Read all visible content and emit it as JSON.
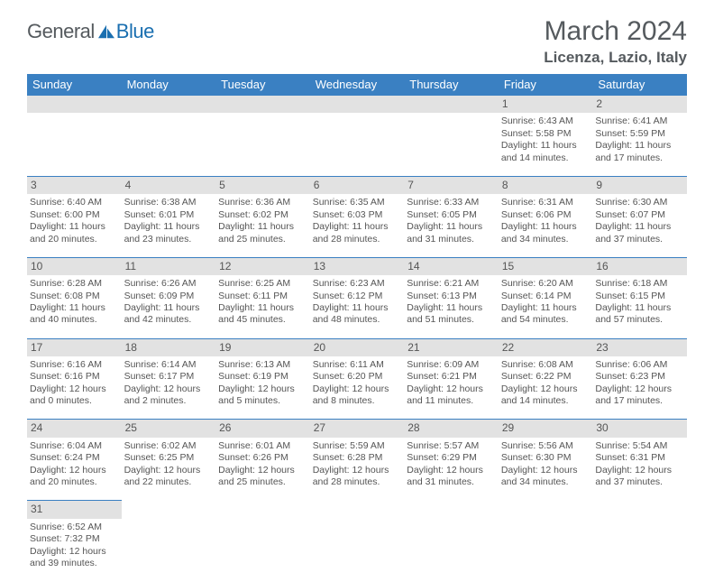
{
  "brand": {
    "word1": "General",
    "word2": "Blue"
  },
  "title": "March 2024",
  "location": "Licenza, Lazio, Italy",
  "colors": {
    "header_bg": "#3a80c2",
    "header_text": "#ffffff",
    "daynum_bg": "#e2e2e2",
    "row_divider": "#3a80c2",
    "body_text": "#555555",
    "brand_gray": "#555a5e",
    "brand_blue": "#1a6fb0",
    "page_bg": "#ffffff"
  },
  "typography": {
    "title_fontsize": 30,
    "location_fontsize": 17,
    "dayheader_fontsize": 13,
    "daynum_fontsize": 12,
    "cell_fontsize": 10.5,
    "font_family": "Arial"
  },
  "day_headers": [
    "Sunday",
    "Monday",
    "Tuesday",
    "Wednesday",
    "Thursday",
    "Friday",
    "Saturday"
  ],
  "weeks": [
    [
      null,
      null,
      null,
      null,
      null,
      {
        "n": "1",
        "sr": "Sunrise: 6:43 AM",
        "ss": "Sunset: 5:58 PM",
        "d1": "Daylight: 11 hours",
        "d2": "and 14 minutes."
      },
      {
        "n": "2",
        "sr": "Sunrise: 6:41 AM",
        "ss": "Sunset: 5:59 PM",
        "d1": "Daylight: 11 hours",
        "d2": "and 17 minutes."
      }
    ],
    [
      {
        "n": "3",
        "sr": "Sunrise: 6:40 AM",
        "ss": "Sunset: 6:00 PM",
        "d1": "Daylight: 11 hours",
        "d2": "and 20 minutes."
      },
      {
        "n": "4",
        "sr": "Sunrise: 6:38 AM",
        "ss": "Sunset: 6:01 PM",
        "d1": "Daylight: 11 hours",
        "d2": "and 23 minutes."
      },
      {
        "n": "5",
        "sr": "Sunrise: 6:36 AM",
        "ss": "Sunset: 6:02 PM",
        "d1": "Daylight: 11 hours",
        "d2": "and 25 minutes."
      },
      {
        "n": "6",
        "sr": "Sunrise: 6:35 AM",
        "ss": "Sunset: 6:03 PM",
        "d1": "Daylight: 11 hours",
        "d2": "and 28 minutes."
      },
      {
        "n": "7",
        "sr": "Sunrise: 6:33 AM",
        "ss": "Sunset: 6:05 PM",
        "d1": "Daylight: 11 hours",
        "d2": "and 31 minutes."
      },
      {
        "n": "8",
        "sr": "Sunrise: 6:31 AM",
        "ss": "Sunset: 6:06 PM",
        "d1": "Daylight: 11 hours",
        "d2": "and 34 minutes."
      },
      {
        "n": "9",
        "sr": "Sunrise: 6:30 AM",
        "ss": "Sunset: 6:07 PM",
        "d1": "Daylight: 11 hours",
        "d2": "and 37 minutes."
      }
    ],
    [
      {
        "n": "10",
        "sr": "Sunrise: 6:28 AM",
        "ss": "Sunset: 6:08 PM",
        "d1": "Daylight: 11 hours",
        "d2": "and 40 minutes."
      },
      {
        "n": "11",
        "sr": "Sunrise: 6:26 AM",
        "ss": "Sunset: 6:09 PM",
        "d1": "Daylight: 11 hours",
        "d2": "and 42 minutes."
      },
      {
        "n": "12",
        "sr": "Sunrise: 6:25 AM",
        "ss": "Sunset: 6:11 PM",
        "d1": "Daylight: 11 hours",
        "d2": "and 45 minutes."
      },
      {
        "n": "13",
        "sr": "Sunrise: 6:23 AM",
        "ss": "Sunset: 6:12 PM",
        "d1": "Daylight: 11 hours",
        "d2": "and 48 minutes."
      },
      {
        "n": "14",
        "sr": "Sunrise: 6:21 AM",
        "ss": "Sunset: 6:13 PM",
        "d1": "Daylight: 11 hours",
        "d2": "and 51 minutes."
      },
      {
        "n": "15",
        "sr": "Sunrise: 6:20 AM",
        "ss": "Sunset: 6:14 PM",
        "d1": "Daylight: 11 hours",
        "d2": "and 54 minutes."
      },
      {
        "n": "16",
        "sr": "Sunrise: 6:18 AM",
        "ss": "Sunset: 6:15 PM",
        "d1": "Daylight: 11 hours",
        "d2": "and 57 minutes."
      }
    ],
    [
      {
        "n": "17",
        "sr": "Sunrise: 6:16 AM",
        "ss": "Sunset: 6:16 PM",
        "d1": "Daylight: 12 hours",
        "d2": "and 0 minutes."
      },
      {
        "n": "18",
        "sr": "Sunrise: 6:14 AM",
        "ss": "Sunset: 6:17 PM",
        "d1": "Daylight: 12 hours",
        "d2": "and 2 minutes."
      },
      {
        "n": "19",
        "sr": "Sunrise: 6:13 AM",
        "ss": "Sunset: 6:19 PM",
        "d1": "Daylight: 12 hours",
        "d2": "and 5 minutes."
      },
      {
        "n": "20",
        "sr": "Sunrise: 6:11 AM",
        "ss": "Sunset: 6:20 PM",
        "d1": "Daylight: 12 hours",
        "d2": "and 8 minutes."
      },
      {
        "n": "21",
        "sr": "Sunrise: 6:09 AM",
        "ss": "Sunset: 6:21 PM",
        "d1": "Daylight: 12 hours",
        "d2": "and 11 minutes."
      },
      {
        "n": "22",
        "sr": "Sunrise: 6:08 AM",
        "ss": "Sunset: 6:22 PM",
        "d1": "Daylight: 12 hours",
        "d2": "and 14 minutes."
      },
      {
        "n": "23",
        "sr": "Sunrise: 6:06 AM",
        "ss": "Sunset: 6:23 PM",
        "d1": "Daylight: 12 hours",
        "d2": "and 17 minutes."
      }
    ],
    [
      {
        "n": "24",
        "sr": "Sunrise: 6:04 AM",
        "ss": "Sunset: 6:24 PM",
        "d1": "Daylight: 12 hours",
        "d2": "and 20 minutes."
      },
      {
        "n": "25",
        "sr": "Sunrise: 6:02 AM",
        "ss": "Sunset: 6:25 PM",
        "d1": "Daylight: 12 hours",
        "d2": "and 22 minutes."
      },
      {
        "n": "26",
        "sr": "Sunrise: 6:01 AM",
        "ss": "Sunset: 6:26 PM",
        "d1": "Daylight: 12 hours",
        "d2": "and 25 minutes."
      },
      {
        "n": "27",
        "sr": "Sunrise: 5:59 AM",
        "ss": "Sunset: 6:28 PM",
        "d1": "Daylight: 12 hours",
        "d2": "and 28 minutes."
      },
      {
        "n": "28",
        "sr": "Sunrise: 5:57 AM",
        "ss": "Sunset: 6:29 PM",
        "d1": "Daylight: 12 hours",
        "d2": "and 31 minutes."
      },
      {
        "n": "29",
        "sr": "Sunrise: 5:56 AM",
        "ss": "Sunset: 6:30 PM",
        "d1": "Daylight: 12 hours",
        "d2": "and 34 minutes."
      },
      {
        "n": "30",
        "sr": "Sunrise: 5:54 AM",
        "ss": "Sunset: 6:31 PM",
        "d1": "Daylight: 12 hours",
        "d2": "and 37 minutes."
      }
    ],
    [
      {
        "n": "31",
        "sr": "Sunrise: 6:52 AM",
        "ss": "Sunset: 7:32 PM",
        "d1": "Daylight: 12 hours",
        "d2": "and 39 minutes."
      },
      null,
      null,
      null,
      null,
      null,
      null
    ]
  ]
}
